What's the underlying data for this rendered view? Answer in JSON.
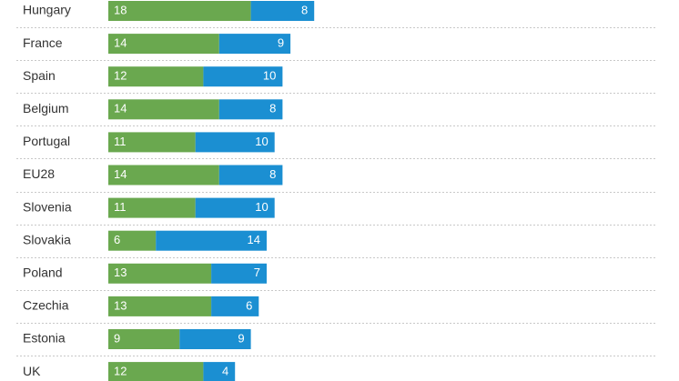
{
  "chart_data": {
    "type": "bar",
    "orientation": "horizontal",
    "stacked": true,
    "categories": [
      "Hungary",
      "France",
      "Spain",
      "Belgium",
      "Portugal",
      "EU28",
      "Slovenia",
      "Slovakia",
      "Poland",
      "Czechia",
      "Estonia",
      "UK"
    ],
    "series": [
      {
        "color": "#6aa84f",
        "values": [
          18,
          14,
          12,
          14,
          11,
          14,
          11,
          6,
          13,
          13,
          9,
          12
        ]
      },
      {
        "color": "#1b8fd2",
        "values": [
          8,
          9,
          10,
          8,
          10,
          8,
          10,
          14,
          7,
          6,
          9,
          4
        ]
      }
    ],
    "xlim": [
      0,
      26
    ],
    "grid": false,
    "legend": "none"
  }
}
